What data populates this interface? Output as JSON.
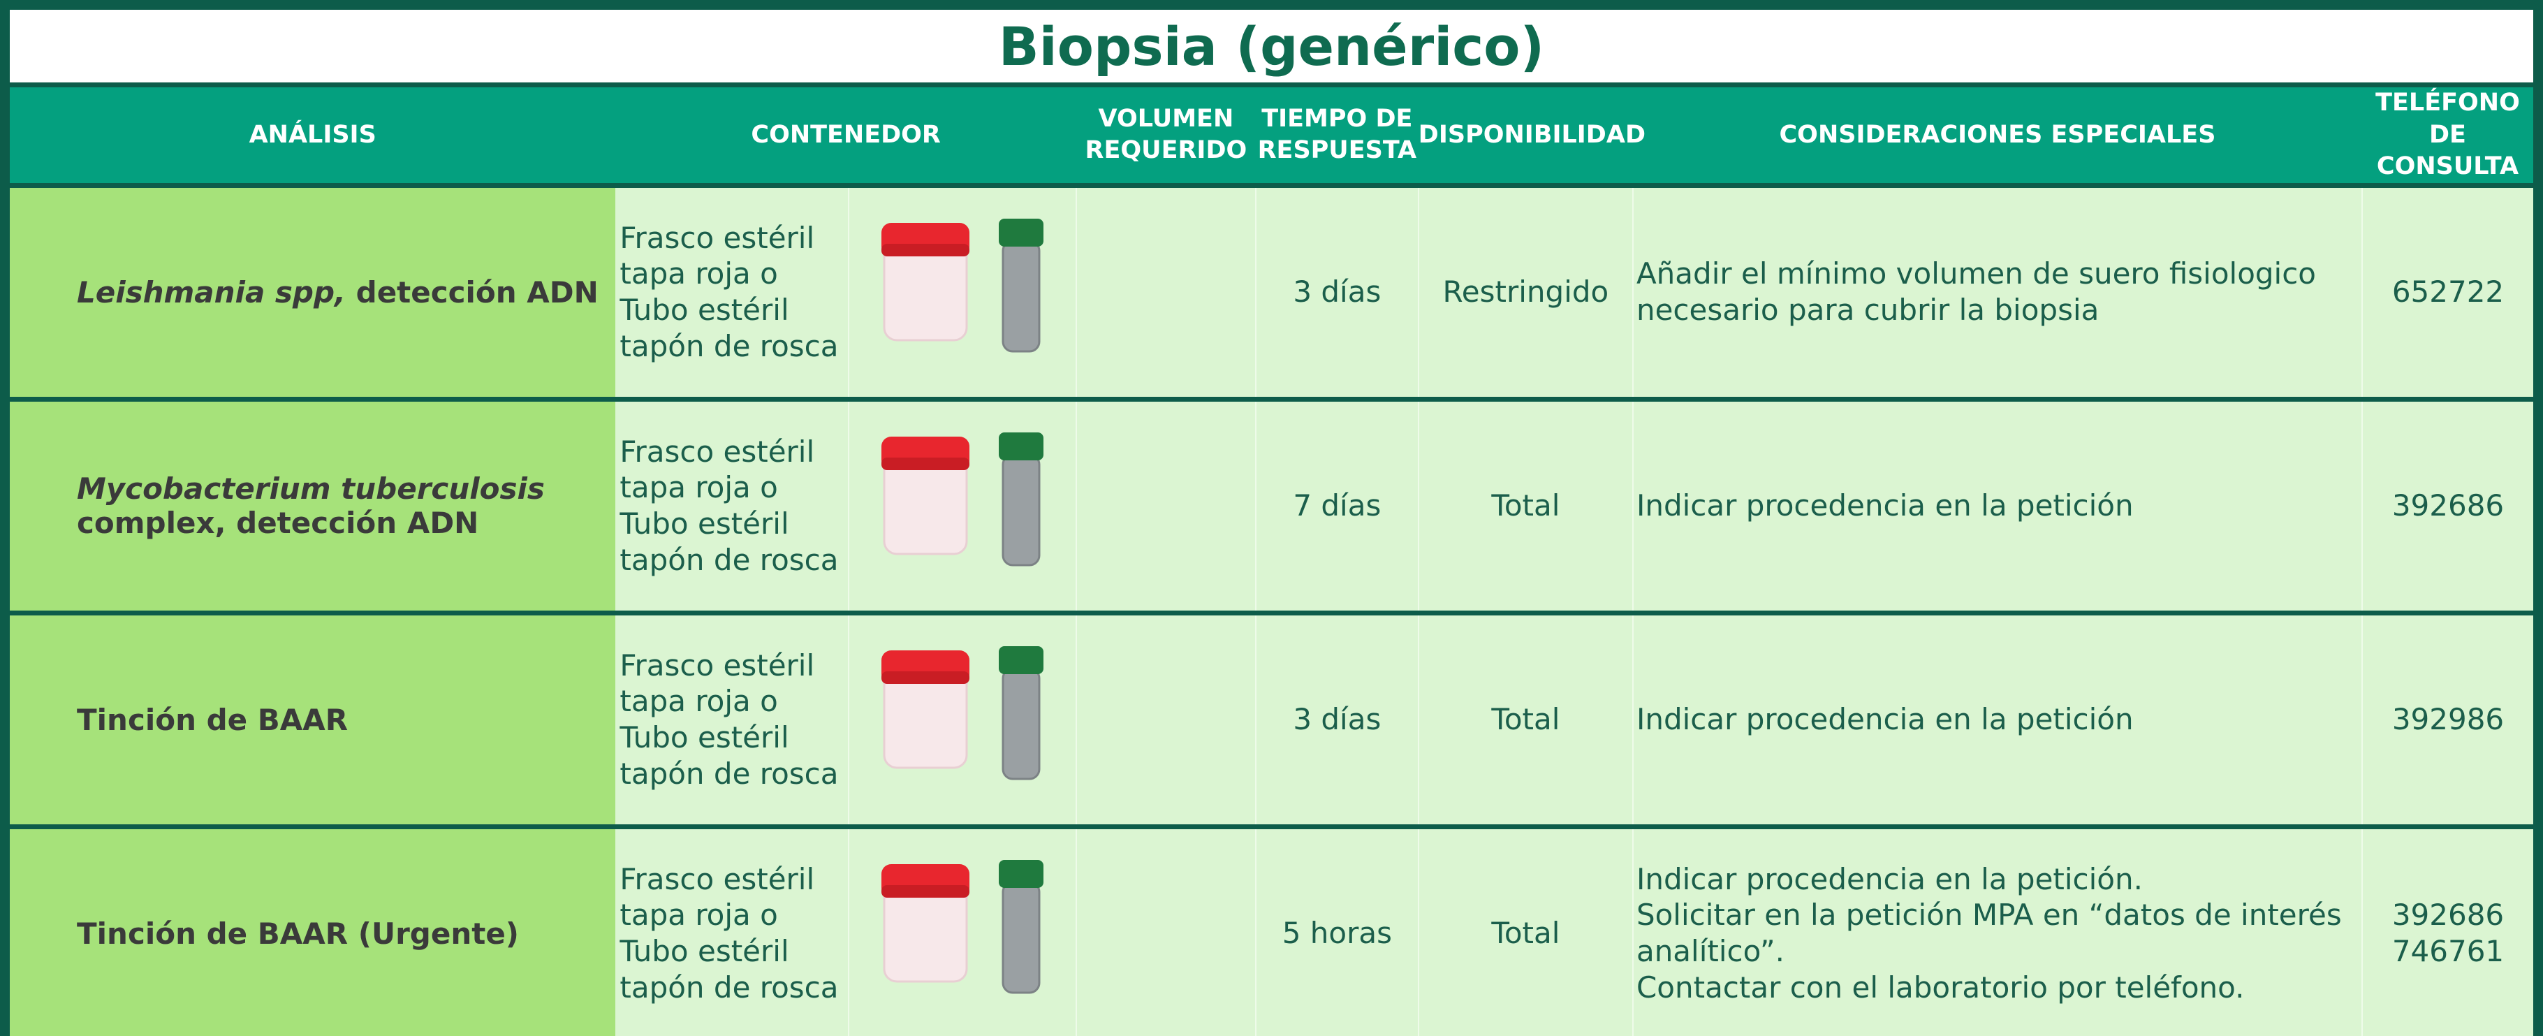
{
  "header": {
    "title": "Biopsia (genérico)"
  },
  "table": {
    "columns": [
      "ANÁLISIS",
      "CONTENEDOR",
      "VOLUMEN REQUERIDO",
      "TIEMPO DE RESPUESTA",
      "DISPONIBILIDAD",
      "CONSIDERACIONES ESPECIALES",
      "TELÉFONO DE CONSULTA"
    ],
    "rows": [
      {
        "analysis": {
          "italic": "Leishmania spp,",
          "text": "detección ADN"
        },
        "container": [
          "Frasco estéril",
          "tapa roja  o",
          "Tubo estéril",
          "tapón de rosca"
        ],
        "time": "3 días",
        "availability": "Restringido",
        "considerations": [
          "Añadir el mínimo volumen de suero fisiologico necesario para cubrir la biopsia"
        ],
        "phones": [
          "652722"
        ]
      },
      {
        "analysis": {
          "italic": "Mycobacterium tuberculosis",
          "text": "complex, detección ADN"
        },
        "container": [
          "Frasco estéril",
          "tapa roja  o",
          "Tubo estéril",
          "tapón de rosca"
        ],
        "time": "7 días",
        "availability": "Total",
        "considerations": [
          "Indicar procedencia en la petición"
        ],
        "phones": [
          "392686"
        ]
      },
      {
        "analysis": {
          "text": "Tinción de BAAR"
        },
        "container": [
          "Frasco estéril",
          "tapa roja  o",
          "Tubo estéril",
          "tapón de rosca"
        ],
        "time": "3 días",
        "availability": "Total",
        "considerations": [
          "Indicar procedencia en la petición"
        ],
        "phones": [
          "392986"
        ]
      },
      {
        "analysis": {
          "text": "Tinción de BAAR (Urgente)"
        },
        "container": [
          "Frasco estéril",
          "tapa roja  o",
          "Tubo estéril",
          "tapón de rosca"
        ],
        "time": "5 horas",
        "availability": "Total",
        "considerations": [
          "Indicar procedencia en la petición.",
          "Solicitar en la petición MPA en “datos de interés analítico”.",
          "Contactar con el laboratorio por teléfono."
        ],
        "phones": [
          "392686",
          "746761"
        ]
      }
    ]
  }
}
